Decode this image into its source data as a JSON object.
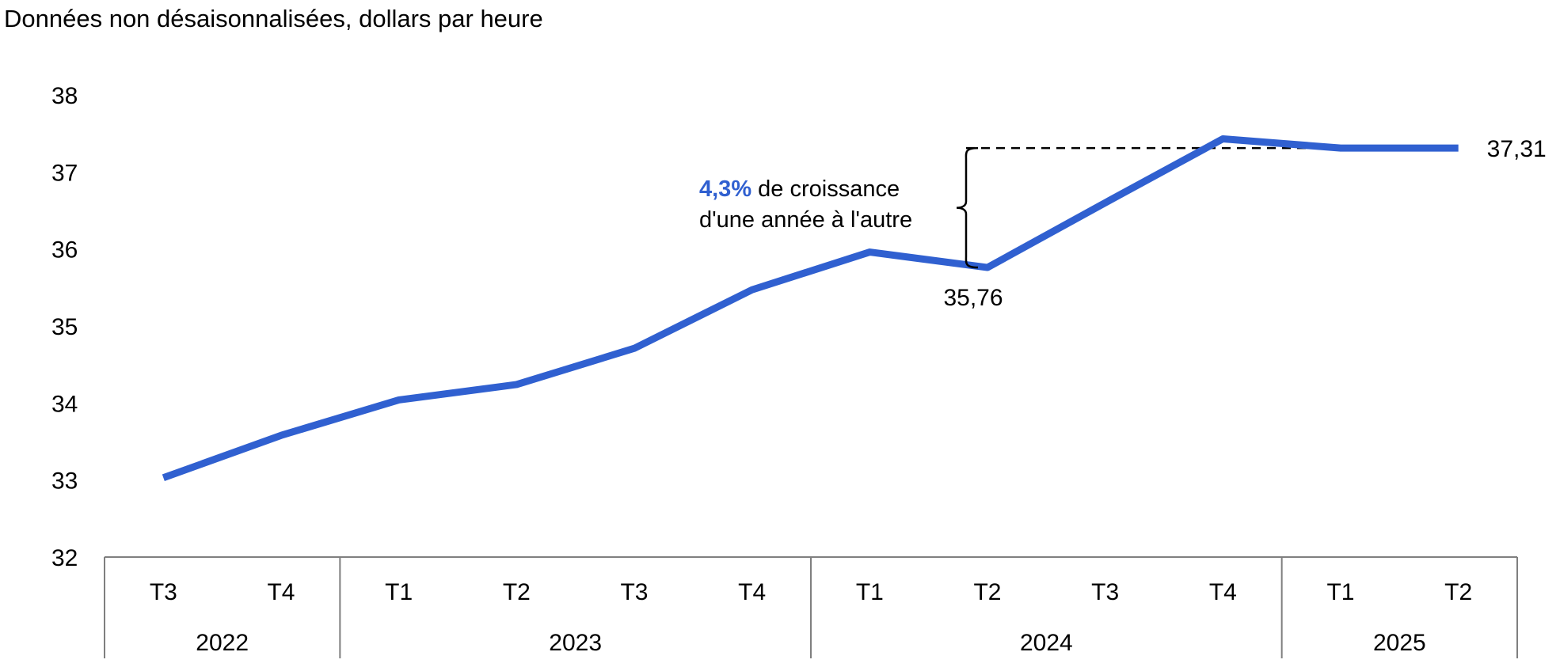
{
  "chart_data": {
    "type": "line",
    "subtitle": "Données non désaisonnalisées, dollars par heure",
    "y_ticks": [
      "32",
      "33",
      "34",
      "35",
      "36",
      "37",
      "38"
    ],
    "ylim": [
      32,
      38
    ],
    "categories": [
      "T3",
      "T4",
      "T1",
      "T2",
      "T3",
      "T4",
      "T1",
      "T2",
      "T3",
      "T4",
      "T1",
      "T2"
    ],
    "year_groups": [
      {
        "label": "2022",
        "count": 2
      },
      {
        "label": "2023",
        "count": 4
      },
      {
        "label": "2024",
        "count": 4
      },
      {
        "label": "2025",
        "count": 2
      }
    ],
    "series": [
      {
        "values": [
          33.03,
          33.58,
          34.04,
          34.24,
          34.71,
          35.47,
          35.96,
          35.76,
          36.6,
          37.43,
          37.31,
          37.31
        ]
      }
    ],
    "data_labels": {
      "low": "35,76",
      "last": "37,31"
    },
    "annotation": {
      "highlight": "4,3%",
      "line1_rest": " de croissance",
      "line2": "d'une année à l'autre"
    },
    "colors": {
      "line": "#3060D0",
      "accent": "#3060D0",
      "axis": "#7F7F7F",
      "dashed": "#000000"
    }
  }
}
